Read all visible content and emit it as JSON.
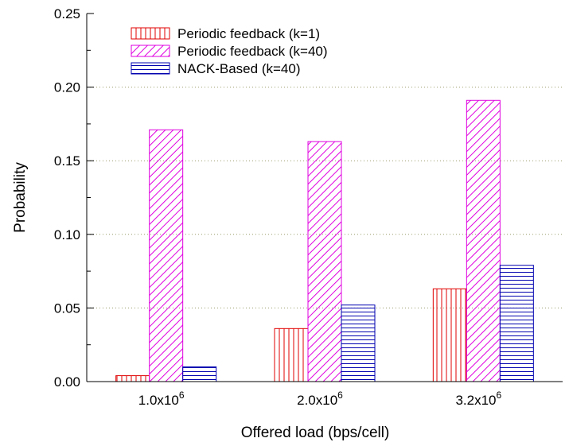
{
  "chart_data": {
    "type": "bar",
    "categories": [
      {
        "base": "1.0x10",
        "exp": "6"
      },
      {
        "base": "2.0x10",
        "exp": "6"
      },
      {
        "base": "3.2x10",
        "exp": "6"
      }
    ],
    "series": [
      {
        "name": "Periodic feedback (k=1)",
        "values": [
          0.004,
          0.036,
          0.063
        ],
        "color": "#e00000",
        "pattern": "vertical"
      },
      {
        "name": "Periodic feedback (k=40)",
        "values": [
          0.171,
          0.163,
          0.191
        ],
        "color": "#e000e0",
        "pattern": "diagonal"
      },
      {
        "name": "NACK-Based (k=40)",
        "values": [
          0.01,
          0.052,
          0.079
        ],
        "color": "#0000b0",
        "pattern": "horizontal"
      }
    ],
    "xlabel": "Offered load (bps/cell)",
    "ylabel": "Probability",
    "ylim": [
      0,
      0.25
    ],
    "yticks": [
      "0.00",
      "0.05",
      "0.10",
      "0.15",
      "0.20",
      "0.25"
    ],
    "grid": "horizontal-dotted",
    "legend": "top-left"
  }
}
